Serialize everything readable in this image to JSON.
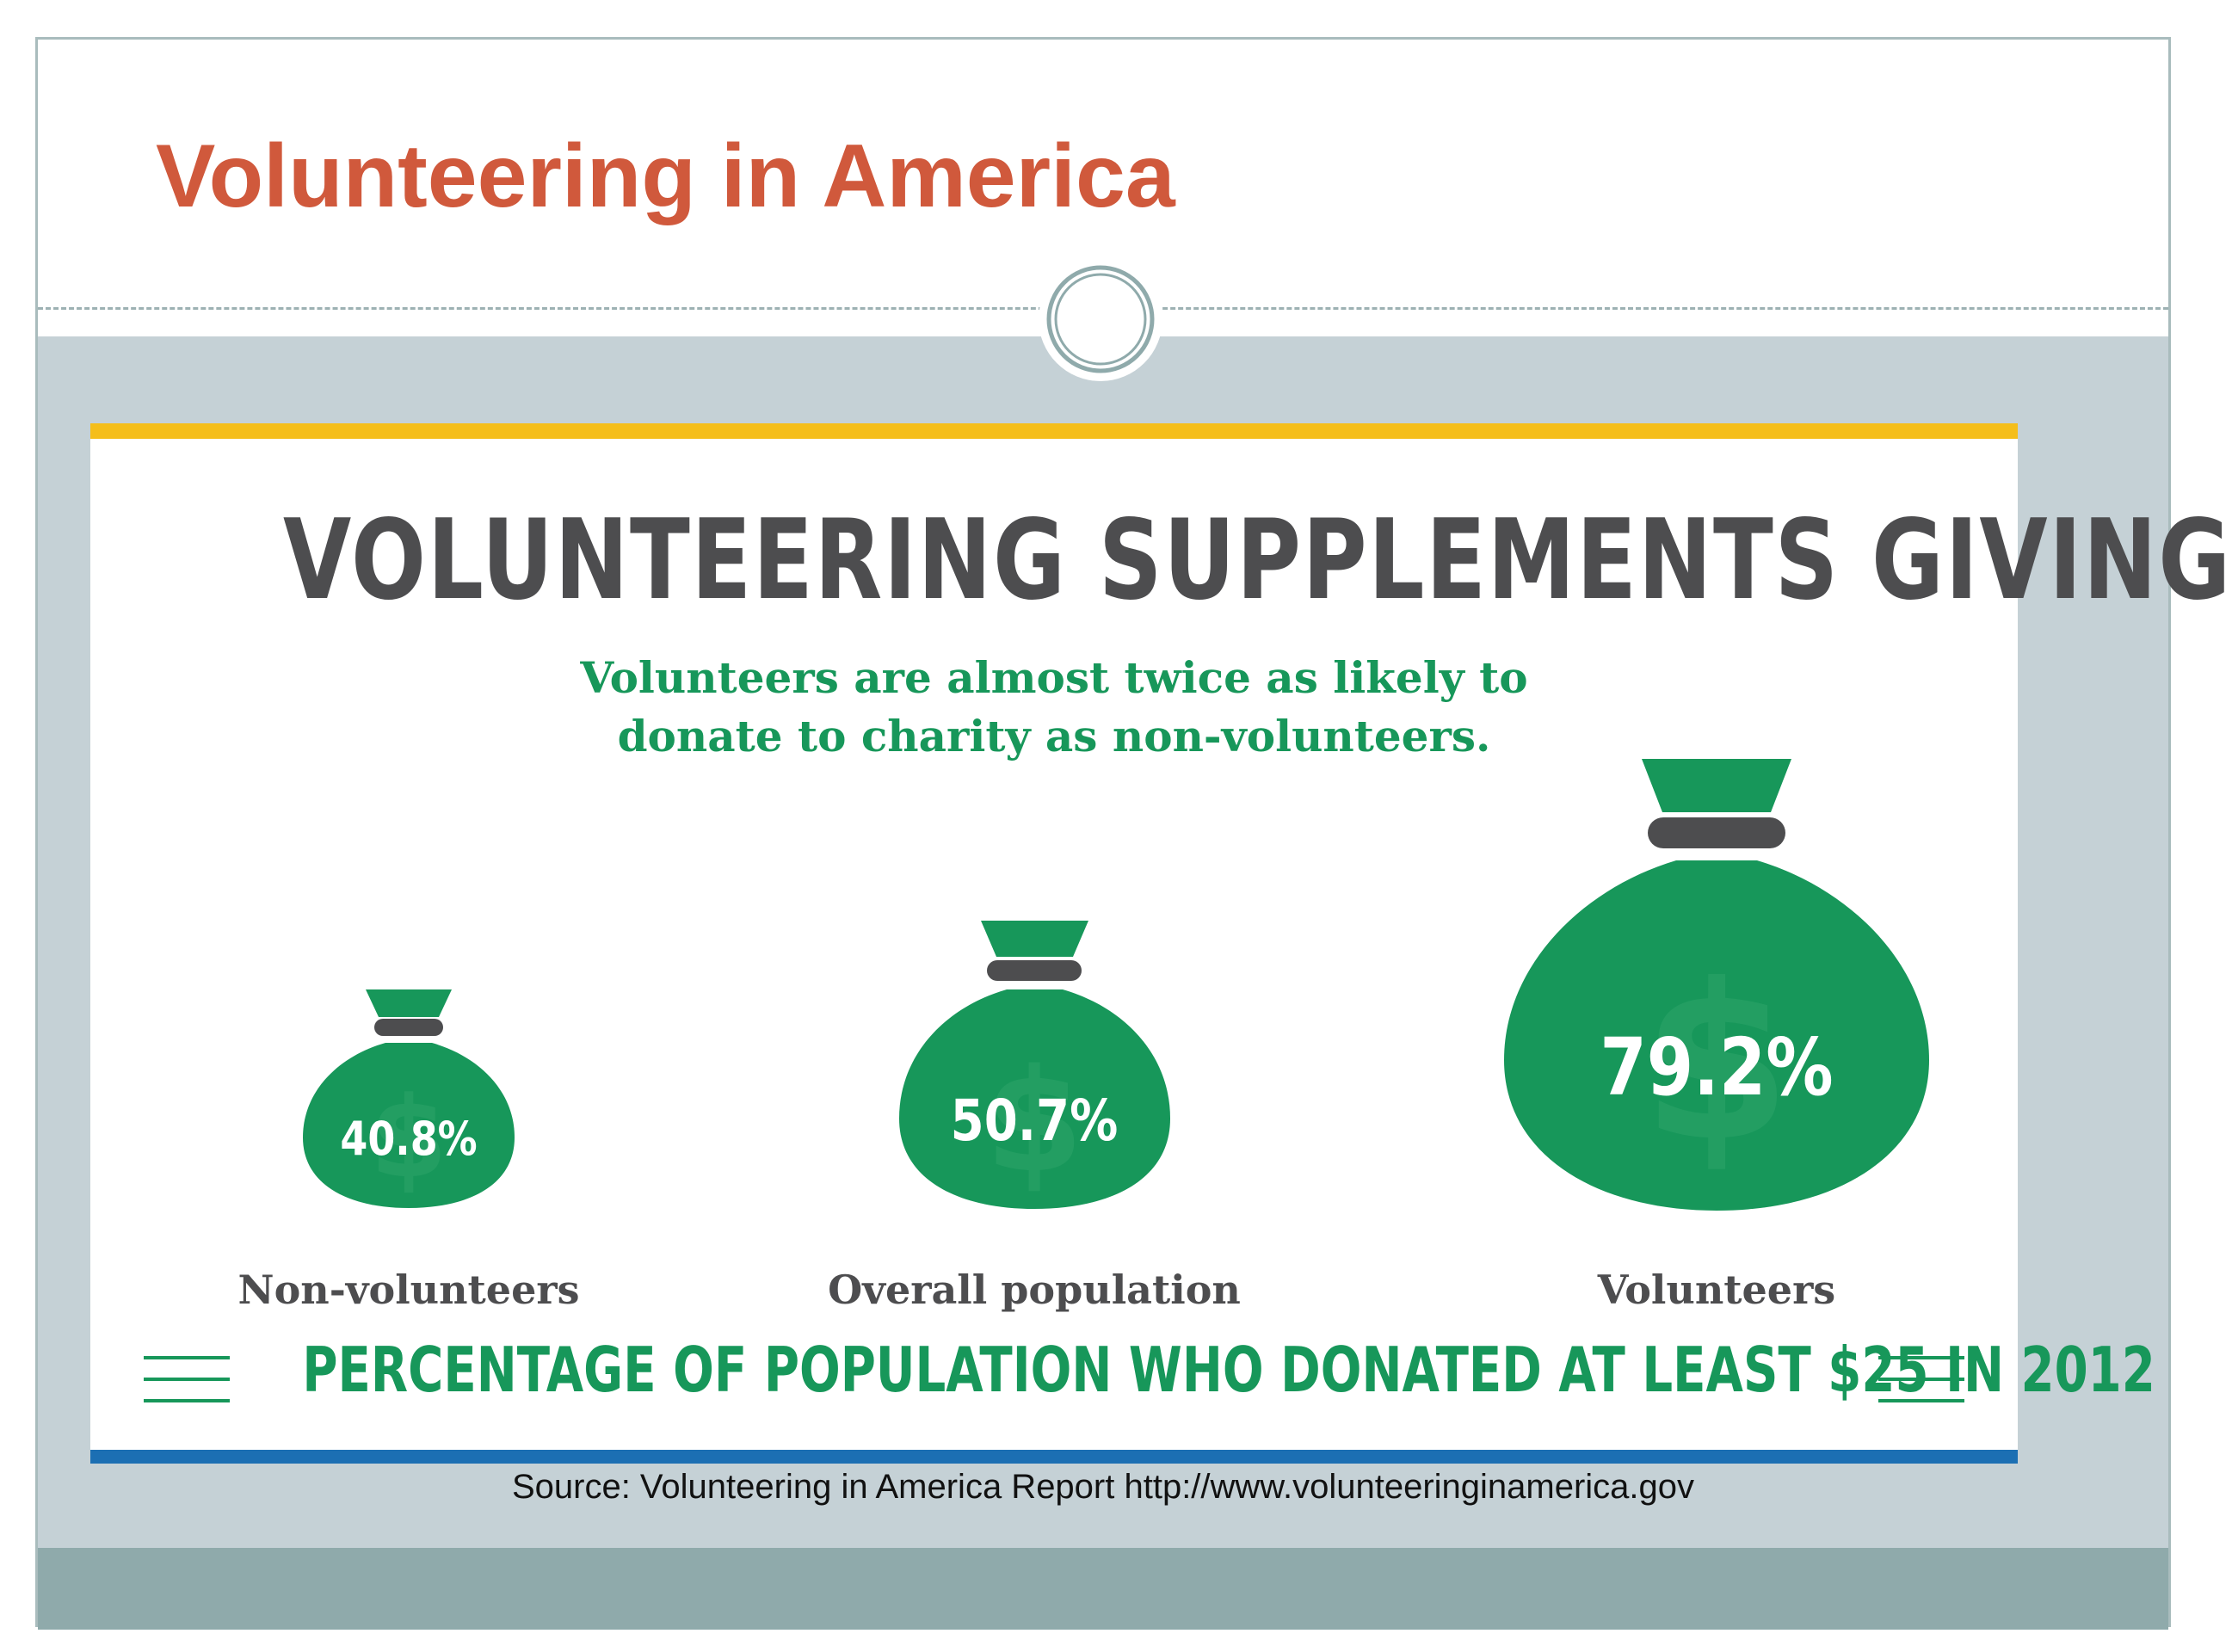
{
  "slide": {
    "title": "Volunteering in America",
    "source": "Source: Volunteering in America Report http://www.volunteeringinamerica.gov",
    "colors": {
      "title": "#d0593c",
      "band": "#c5d1d6",
      "footer_band": "#8faaab"
    }
  },
  "infographic": {
    "headline": "VOLUNTEERING SUPPLEMENTS GIVING",
    "subtitle_line1": "Volunteers are almost twice as likely to",
    "subtitle_line2": "donate to charity as non-volunteers.",
    "footer": "PERCENTAGE OF POPULATION WHO DONATED AT LEAST $25 IN 2012",
    "colors": {
      "green": "#17975a",
      "gray": "#4d4d4f",
      "top_bar": "#f5be1a",
      "bottom_bar": "#1c6fb3"
    },
    "bags": [
      {
        "label": "Non-volunteers",
        "value": "40.8%"
      },
      {
        "label": "Overall population",
        "value": "50.7%"
      },
      {
        "label": "Volunteers",
        "value": "79.2%"
      }
    ]
  }
}
